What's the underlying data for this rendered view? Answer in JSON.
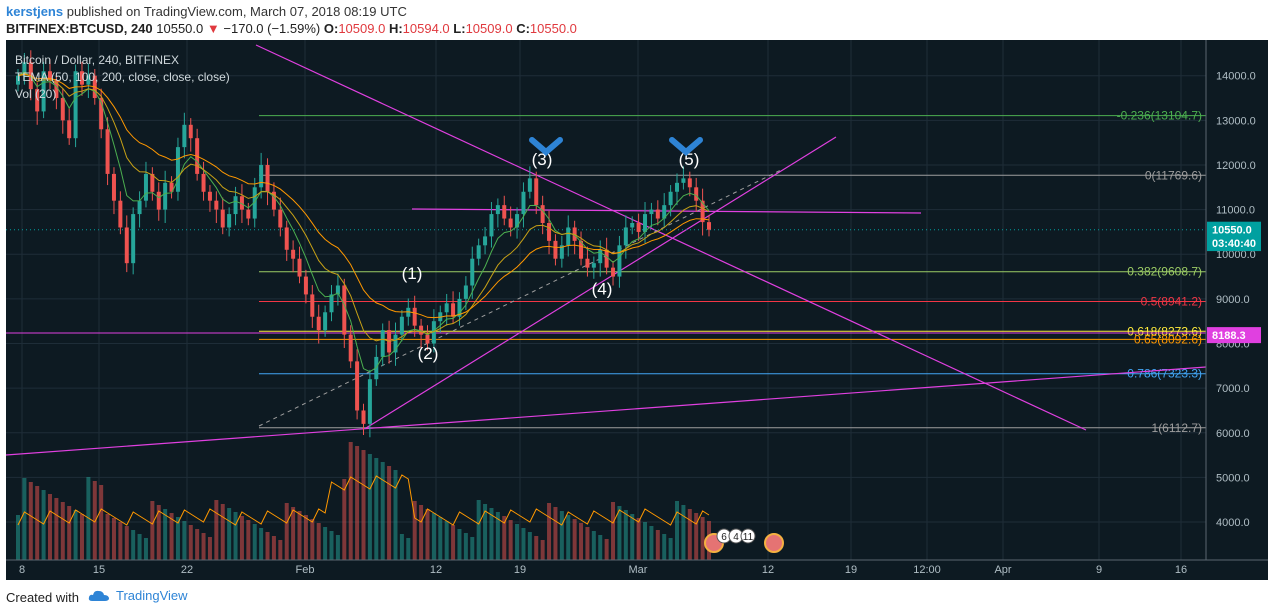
{
  "header": {
    "user": "kerstjens",
    "published_text": "published on TradingView.com, March 07, 2018 08:19 UTC",
    "symbol": "BITFINEX:BTCUSD, 240",
    "last": "10550.0",
    "change": "−170.0 (−1.59%)",
    "o_label": "O:",
    "o_value": "10509.0",
    "h_label": "H:",
    "h_value": "10594.0",
    "l_label": "L:",
    "l_value": "10509.0",
    "c_label": "C:",
    "c_value": "10550.0"
  },
  "legend": {
    "line1": "Bitcoin / Dollar, 240, BITFINEX",
    "line2": "TEMA (50, 100, 200, close, close, close)",
    "line3": "Vol (20)"
  },
  "footer": {
    "created_with": "Created with",
    "brand": "TradingView"
  },
  "colors": {
    "background": "#0d1a22",
    "up": "#26a69a",
    "down": "#ef5350",
    "magenta": "#e040e0",
    "accent_blue": "#2e84d6"
  },
  "chart_data": {
    "type": "candlestick",
    "y_range": [
      3150,
      14800
    ],
    "price_ticks": [
      "4000.0",
      "5000.0",
      "6000.0",
      "7000.0",
      "8000.0",
      "9000.0",
      "10000.0",
      "11000.0",
      "12000.0",
      "13000.0",
      "14000.0"
    ],
    "x_ticks": [
      "8",
      "15",
      "22",
      "Feb",
      "12",
      "19",
      "Mar",
      "12",
      "19",
      "12:00",
      "Apr",
      "9",
      "16"
    ],
    "price_tags": [
      {
        "label": "10550.0",
        "value": 10550,
        "color": "#00a0a0"
      },
      {
        "label": "03:40:40",
        "value": 10250,
        "color": "#00a0a0"
      },
      {
        "label": "8188.3",
        "value": 8188.3,
        "color": "#e040e0"
      }
    ],
    "fib_levels": [
      {
        "label": "-0.236(13104.7)",
        "value": 13104.7,
        "color": "#4caf50"
      },
      {
        "label": "0(11769.6)",
        "value": 11769.6,
        "color": "#9e9e9e"
      },
      {
        "label": "0.382(9608.7)",
        "value": 9608.7,
        "color": "#9ccc65"
      },
      {
        "label": "0.5(8941.2)",
        "value": 8941.2,
        "color": "#f23645"
      },
      {
        "label": "0.618(8273.6)",
        "value": 8273.6,
        "color": "#ffeb3b"
      },
      {
        "label": "0.65(8092.6)",
        "value": 8092.6,
        "color": "#ff9800"
      },
      {
        "label": "0.786(7323.3)",
        "value": 7323.3,
        "color": "#42a5f5"
      },
      {
        "label": "1(6112.7)",
        "value": 6112.7,
        "color": "#9e9e9e"
      }
    ],
    "wave_labels": [
      {
        "label": "(1)",
        "value": 9450
      },
      {
        "label": "(2)",
        "value": 7650
      },
      {
        "label": "(3)",
        "value": 12000
      },
      {
        "label": "(4)",
        "value": 9100
      },
      {
        "label": "(5)",
        "value": 12000
      }
    ],
    "event_badges": [
      "6",
      "4",
      "11"
    ],
    "close_series": [
      14000,
      14300,
      13700,
      13200,
      14100,
      13900,
      13500,
      13000,
      12600,
      14100,
      13800,
      14000,
      13500,
      12800,
      11800,
      11200,
      10600,
      9800,
      10900,
      11200,
      11800,
      11400,
      11000,
      11600,
      11400,
      12400,
      12900,
      12600,
      11800,
      11400,
      11200,
      11000,
      10600,
      10900,
      11300,
      11000,
      10800,
      11500,
      12000,
      11400,
      11000,
      10600,
      10100,
      9900,
      9500,
      9100,
      8600,
      8300,
      8700,
      9100,
      9300,
      8200,
      7600,
      6500,
      6200,
      7200,
      7700,
      8300,
      7800,
      8200,
      8600,
      8800,
      8400,
      8200,
      8000,
      8500,
      8700,
      8900,
      8600,
      9000,
      9300,
      9900,
      10200,
      10400,
      10900,
      11100,
      10800,
      10600,
      10900,
      11400,
      11700,
      11100,
      10700,
      10300,
      9900,
      10200,
      10600,
      10300,
      9900,
      9700,
      9800,
      10100,
      9700,
      9500,
      10200,
      10600,
      10700,
      10500,
      10900,
      11000,
      10800,
      11100,
      11400,
      11600,
      11700,
      11500,
      11200,
      10720,
      10550
    ]
  }
}
